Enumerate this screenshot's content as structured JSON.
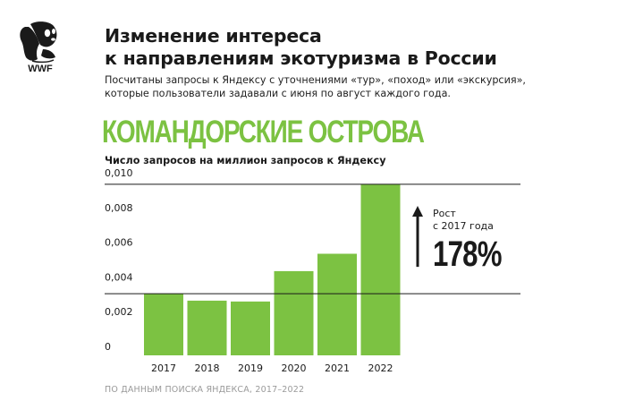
{
  "header": {
    "title_line1": "Изменение интереса",
    "title_line2": "к направлениям экотуризма в России",
    "subtitle_line1": "Посчитаны запросы к Яндексу с уточнениями «тур», «поход» или «экскурсия»,",
    "subtitle_line2": "которые пользователи задавали с июня по август каждого года."
  },
  "logo": {
    "text": "WWF"
  },
  "region": "КОМАНДОРСКИЕ ОСТРОВА",
  "growth": {
    "label_line1": "Рост",
    "label_line2": "с 2017 года",
    "value": "178%"
  },
  "source": "ПО ДАННЫМ ПОИСКА ЯНДЕКСА, 2017–2022",
  "colors": {
    "bar": "#7cc242",
    "accent_text": "#7cc242",
    "text": "#1a1a1a"
  },
  "chart_data": {
    "type": "bar",
    "ylabel": "Число запросов на миллион запросов к Яндексу",
    "categories": [
      "2017",
      "2018",
      "2019",
      "2020",
      "2021",
      "2022"
    ],
    "values": [
      0.00355,
      0.00315,
      0.0031,
      0.00485,
      0.00585,
      0.00985
    ],
    "ylim": [
      0,
      0.01
    ],
    "yticks": [
      "0",
      "0,002",
      "0,004",
      "0,006",
      "0,008",
      "0,010"
    ],
    "ytick_values": [
      0,
      0.002,
      0.004,
      0.006,
      0.008,
      0.01
    ],
    "grid": false,
    "legend": "none"
  }
}
